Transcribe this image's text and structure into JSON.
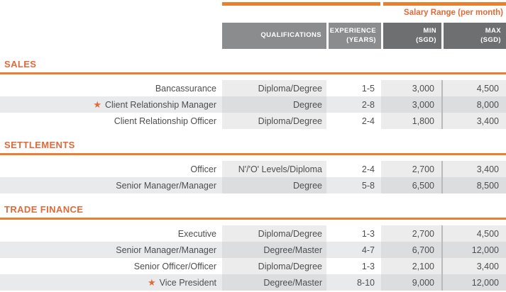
{
  "colors": {
    "accent-orange": "#e06a38",
    "rule-orange": "#e8802f",
    "header-gray": "#8b8c8e",
    "header-dark-gray": "#6e6f71",
    "row-alt": "#e9eaeb",
    "col-tint": "#ececec",
    "col-tint-alt": "#dcddde",
    "divider-gray": "#b9babc",
    "text-gray": "#4d4e50"
  },
  "star_icon_glyph": "★",
  "header": {
    "group_label": "Salary Range (per month)",
    "columns": [
      {
        "key": "qualifications",
        "line1": "QUALIFICATIONS",
        "line2": ""
      },
      {
        "key": "experience",
        "line1": "EXPERIENCE",
        "line2": "(YEARS)"
      },
      {
        "key": "min",
        "line1": "MIN",
        "line2": "(SGD)"
      },
      {
        "key": "max",
        "line1": "MAX",
        "line2": "(SGD)"
      }
    ]
  },
  "sections": [
    {
      "title": "SALES",
      "rows": [
        {
          "role": "Bancassurance",
          "starred": false,
          "qualifications": "Diploma/Degree",
          "experience": "1-5",
          "min": "3,000",
          "max": "4,500"
        },
        {
          "role": "Client Relationship Manager",
          "starred": true,
          "qualifications": "Degree",
          "experience": "2-8",
          "min": "3,000",
          "max": "8,000"
        },
        {
          "role": "Client Relationship Officer",
          "starred": false,
          "qualifications": "Diploma/Degree",
          "experience": "2-4",
          "min": "1,800",
          "max": "3,400"
        }
      ]
    },
    {
      "title": "SETTLEMENTS",
      "rows": [
        {
          "role": "Officer",
          "starred": false,
          "qualifications": "N'/'O' Levels/Diploma",
          "experience": "2-4",
          "min": "2,700",
          "max": "3,400"
        },
        {
          "role": "Senior Manager/Manager",
          "starred": false,
          "qualifications": "Degree",
          "experience": "5-8",
          "min": "6,500",
          "max": "8,500"
        }
      ]
    },
    {
      "title": "TRADE FINANCE",
      "rows": [
        {
          "role": "Executive",
          "starred": false,
          "qualifications": "Diploma/Degree",
          "experience": "1-3",
          "min": "2,700",
          "max": "4,500"
        },
        {
          "role": "Senior Manager/Manager",
          "starred": false,
          "qualifications": "Degree/Master",
          "experience": "4-7",
          "min": "6,700",
          "max": "12,000"
        },
        {
          "role": "Senior Officer/Officer",
          "starred": false,
          "qualifications": "Diploma/Degree",
          "experience": "1-3",
          "min": "2,100",
          "max": "3,400"
        },
        {
          "role": "Vice President",
          "starred": true,
          "qualifications": "Degree/Master",
          "experience": "8-10",
          "min": "9,000",
          "max": "12,000"
        }
      ]
    }
  ]
}
